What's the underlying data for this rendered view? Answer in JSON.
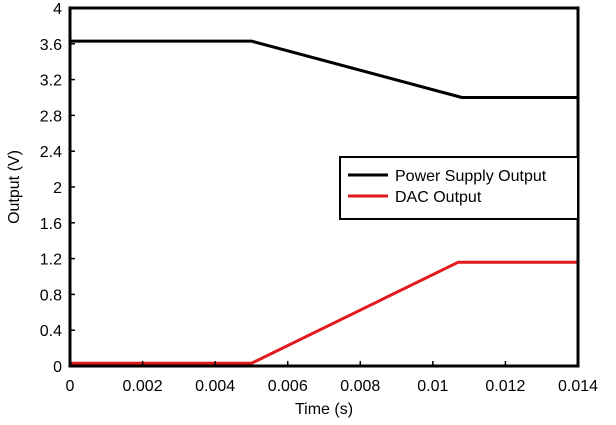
{
  "chart_data": {
    "type": "line",
    "xlabel": "Time (s)",
    "ylabel": "Output (V)",
    "xlim": [
      0,
      0.014
    ],
    "ylim": [
      0,
      4
    ],
    "x_ticks": [
      "0",
      "0.002",
      "0.004",
      "0.006",
      "0.008",
      "0.01",
      "0.012",
      "0.014"
    ],
    "y_ticks": [
      "0",
      "0.4",
      "0.8",
      "1.2",
      "1.6",
      "2",
      "2.4",
      "2.8",
      "3.2",
      "3.6",
      "4"
    ],
    "grid": false,
    "legend_position": "right",
    "series": [
      {
        "name": "Power Supply Output",
        "color": "#000000",
        "x": [
          0,
          0.005,
          0.0108,
          0.014
        ],
        "y": [
          3.63,
          3.63,
          3.0,
          3.0
        ]
      },
      {
        "name": "DAC Output",
        "color": "#e31a1c",
        "x": [
          0,
          0.005,
          0.0107,
          0.014
        ],
        "y": [
          0.03,
          0.03,
          1.16,
          1.16
        ]
      }
    ]
  }
}
